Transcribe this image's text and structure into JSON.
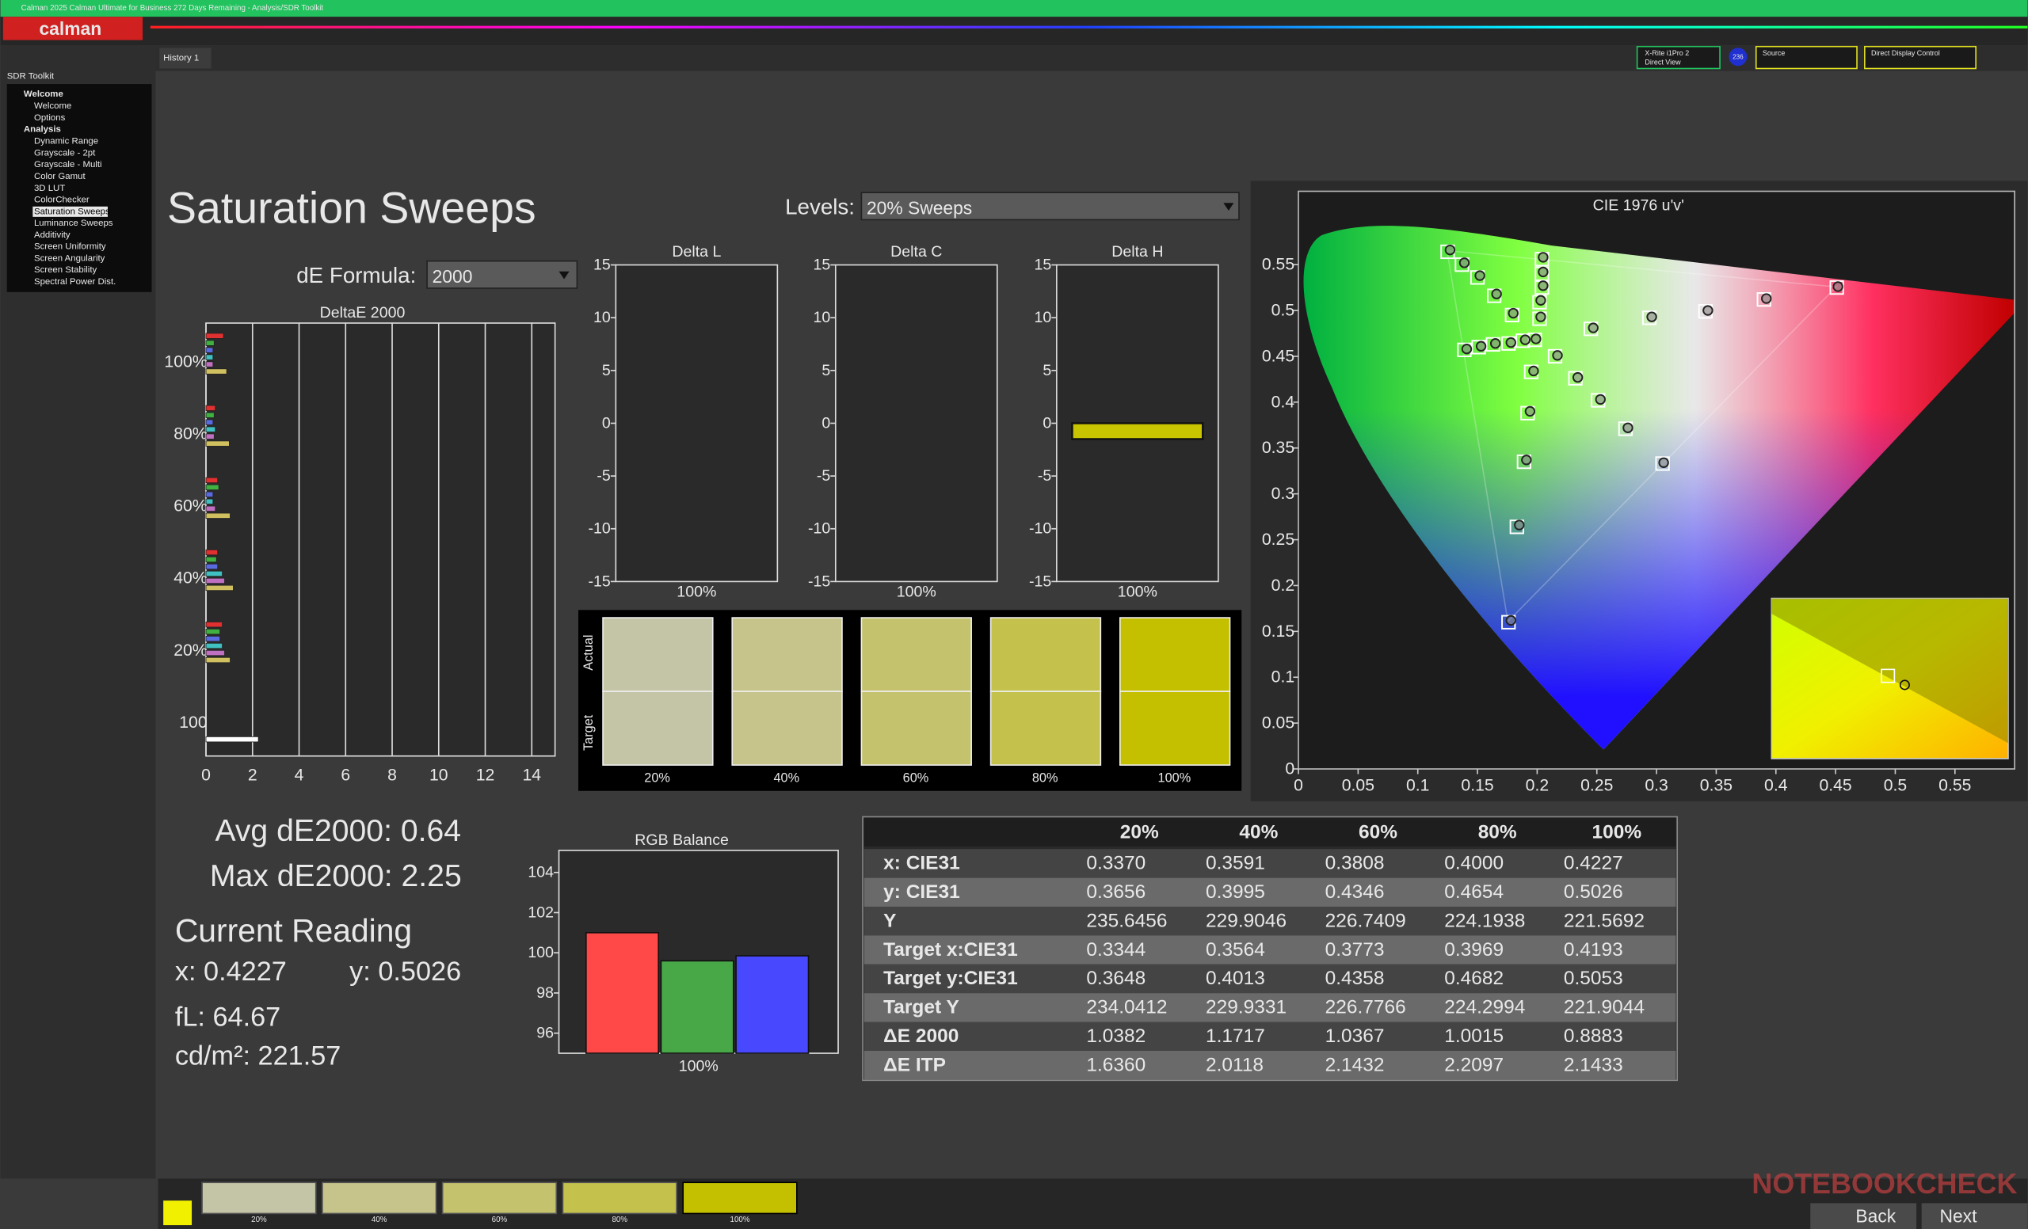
{
  "window": {
    "title": "Calman 2025 Calman Ultimate for Business 272 Days Remaining  - Analysis/SDR Toolkit",
    "logo": "calman",
    "tab": "History 1"
  },
  "toolbar": {
    "meter": "X-Rite i1Pro 2",
    "meter_mode": "Direct View",
    "badge": "236",
    "source": "Source",
    "display": "Direct Display Control"
  },
  "sidebar": {
    "title": "SDR Toolkit",
    "groups": [
      {
        "label": "Welcome",
        "items": [
          "Welcome",
          "Options"
        ]
      },
      {
        "label": "Analysis",
        "items": [
          "Dynamic Range",
          "Grayscale - 2pt",
          "Grayscale - Multi",
          "Color Gamut",
          "3D LUT",
          "ColorChecker",
          "Saturation Sweeps",
          "Luminance Sweeps",
          "Additivity",
          "Screen Uniformity",
          "Screen Angularity",
          "Screen Stability",
          "Spectral Power Dist."
        ]
      }
    ]
  },
  "page": {
    "title": "Saturation Sweeps",
    "levels_label": "Levels:",
    "levels_value": "20% Sweeps",
    "formula_label": "dE Formula:",
    "formula_value": "2000"
  },
  "deltae_chart": {
    "type": "bar",
    "orientation": "horizontal",
    "title": "DeltaE 2000",
    "categories": [
      "100%",
      "80%",
      "60%",
      "40%",
      "20%",
      "100"
    ],
    "series": [
      {
        "color": "#e03030",
        "values": [
          0.75,
          0.4,
          0.5,
          0.5,
          0.7,
          null
        ]
      },
      {
        "color": "#40b040",
        "values": [
          0.35,
          0.35,
          0.55,
          0.45,
          0.6,
          null
        ]
      },
      {
        "color": "#5a6ae0",
        "values": [
          0.3,
          0.3,
          0.3,
          0.5,
          0.6,
          null
        ]
      },
      {
        "color": "#40c0c0",
        "values": [
          0.3,
          0.4,
          0.3,
          0.7,
          0.7,
          null
        ]
      },
      {
        "color": "#c070c0",
        "values": [
          0.3,
          0.35,
          0.4,
          0.8,
          0.8,
          null
        ]
      },
      {
        "color": "#d0c060",
        "values": [
          0.8883,
          1.0015,
          1.0367,
          1.1717,
          1.0382,
          null
        ]
      },
      {
        "color": "#ffffff",
        "values": [
          null,
          null,
          null,
          null,
          null,
          2.25
        ]
      }
    ],
    "xlim": [
      0,
      15
    ],
    "xticks": [
      0,
      2,
      4,
      6,
      8,
      10,
      12,
      14
    ]
  },
  "delta_charts": [
    {
      "type": "bar",
      "title": "Delta L",
      "categories": [
        "100%"
      ],
      "values": [
        0
      ],
      "color": "#111111",
      "ylim": [
        -15,
        15
      ],
      "yticks": [
        -15,
        -10,
        -5,
        0,
        5,
        10,
        15
      ]
    },
    {
      "type": "bar",
      "title": "Delta C",
      "categories": [
        "100%"
      ],
      "values": [
        0
      ],
      "color": "#c8c400",
      "ylim": [
        -15,
        15
      ],
      "yticks": [
        -15,
        -10,
        -5,
        0,
        5,
        10,
        15
      ]
    },
    {
      "type": "bar",
      "title": "Delta H",
      "categories": [
        "100%"
      ],
      "values": [
        -1.5
      ],
      "color": "#c8c400",
      "ylim": [
        -15,
        15
      ],
      "yticks": [
        -15,
        -10,
        -5,
        0,
        5,
        10,
        15
      ]
    }
  ],
  "swatches": {
    "actual_label": "Actual",
    "target_label": "Target",
    "items": [
      {
        "label": "20%",
        "color": "#c4c4a6"
      },
      {
        "label": "40%",
        "color": "#c6c48a"
      },
      {
        "label": "60%",
        "color": "#c4c26c"
      },
      {
        "label": "80%",
        "color": "#c4c24c"
      },
      {
        "label": "100%",
        "color": "#c4c000"
      }
    ]
  },
  "stats": {
    "avg": "Avg dE2000: 0.64",
    "max": "Max dE2000: 2.25",
    "reading_title": "Current Reading",
    "x": "x: 0.4227",
    "y": "y: 0.5026",
    "fl": "fL: 64.67",
    "cdm2": "cd/m²: 221.57"
  },
  "rgb_chart": {
    "type": "bar",
    "title": "RGB Balance",
    "categories": [
      "100%"
    ],
    "series": [
      {
        "color": "#ff4848",
        "values": [
          101
        ]
      },
      {
        "color": "#48a848",
        "values": [
          99.6
        ]
      },
      {
        "color": "#4848ff",
        "values": [
          99.85
        ]
      }
    ],
    "ylim": [
      95,
      105.1
    ],
    "yticks": [
      96,
      98,
      100,
      102,
      104
    ]
  },
  "table": {
    "header": [
      "20%",
      "40%",
      "60%",
      "80%",
      "100%"
    ],
    "rows": [
      [
        "x: CIE31",
        "0.3370",
        "0.3591",
        "0.3808",
        "0.4000",
        "0.4227"
      ],
      [
        "y: CIE31",
        "0.3656",
        "0.3995",
        "0.4346",
        "0.4654",
        "0.5026"
      ],
      [
        "Y",
        "235.6456",
        "229.9046",
        "226.7409",
        "224.1938",
        "221.5692"
      ],
      [
        "Target x:CIE31",
        "0.3344",
        "0.3564",
        "0.3773",
        "0.3969",
        "0.4193"
      ],
      [
        "Target y:CIE31",
        "0.3648",
        "0.4013",
        "0.4358",
        "0.4682",
        "0.5053"
      ],
      [
        "Target Y",
        "234.0412",
        "229.9331",
        "226.7766",
        "224.2994",
        "221.9044"
      ],
      [
        "ΔE 2000",
        "1.0382",
        "1.1717",
        "1.0367",
        "1.0015",
        "0.8883"
      ],
      [
        "ΔE ITP",
        "1.6360",
        "2.0118",
        "2.1432",
        "2.2097",
        "2.1433"
      ]
    ]
  },
  "cie_chart": {
    "type": "scatter",
    "title": "CIE 1976 u'v'",
    "xlim": [
      0,
      0.6
    ],
    "ylim": [
      0,
      0.63
    ],
    "xticks": [
      0,
      0.05,
      0.1,
      0.15,
      0.2,
      0.25,
      0.3,
      0.35,
      0.4,
      0.45,
      0.5,
      0.55
    ],
    "yticks": [
      0,
      0.05,
      0.1,
      0.15,
      0.2,
      0.25,
      0.3,
      0.35,
      0.4,
      0.45,
      0.5,
      0.55
    ],
    "series": [
      {
        "marker": "square",
        "color": "#ffffff",
        "x": [
          0.198,
          0.245,
          0.294,
          0.341,
          0.39,
          0.451,
          0.179,
          0.164,
          0.15,
          0.137,
          0.125,
          0.202,
          0.202,
          0.204,
          0.204,
          0.204,
          0.188,
          0.176,
          0.163,
          0.151,
          0.139,
          0.195,
          0.192,
          0.189,
          0.183,
          0.176,
          0.215,
          0.232,
          0.251,
          0.274,
          0.305
        ],
        "y": [
          0.468,
          0.48,
          0.492,
          0.499,
          0.512,
          0.525,
          0.495,
          0.516,
          0.536,
          0.55,
          0.564,
          0.491,
          0.509,
          0.525,
          0.54,
          0.556,
          0.467,
          0.464,
          0.463,
          0.46,
          0.457,
          0.433,
          0.388,
          0.335,
          0.264,
          0.16,
          0.45,
          0.426,
          0.402,
          0.371,
          0.333
        ]
      },
      {
        "marker": "circle",
        "color": "#222222",
        "x": [
          0.199,
          0.247,
          0.296,
          0.343,
          0.392,
          0.452,
          0.18,
          0.166,
          0.152,
          0.139,
          0.127,
          0.203,
          0.203,
          0.205,
          0.205,
          0.205,
          0.19,
          0.178,
          0.165,
          0.153,
          0.141,
          0.197,
          0.194,
          0.191,
          0.185,
          0.178,
          0.217,
          0.234,
          0.253,
          0.276,
          0.306
        ],
        "y": [
          0.469,
          0.481,
          0.493,
          0.5,
          0.513,
          0.526,
          0.497,
          0.518,
          0.538,
          0.552,
          0.566,
          0.493,
          0.511,
          0.527,
          0.542,
          0.558,
          0.468,
          0.465,
          0.464,
          0.461,
          0.458,
          0.434,
          0.39,
          0.337,
          0.266,
          0.162,
          0.451,
          0.427,
          0.403,
          0.372,
          0.334
        ]
      }
    ]
  },
  "footer": {
    "back": "Back",
    "next": "Next",
    "watermark": "NOTEBOOKCHECK"
  }
}
